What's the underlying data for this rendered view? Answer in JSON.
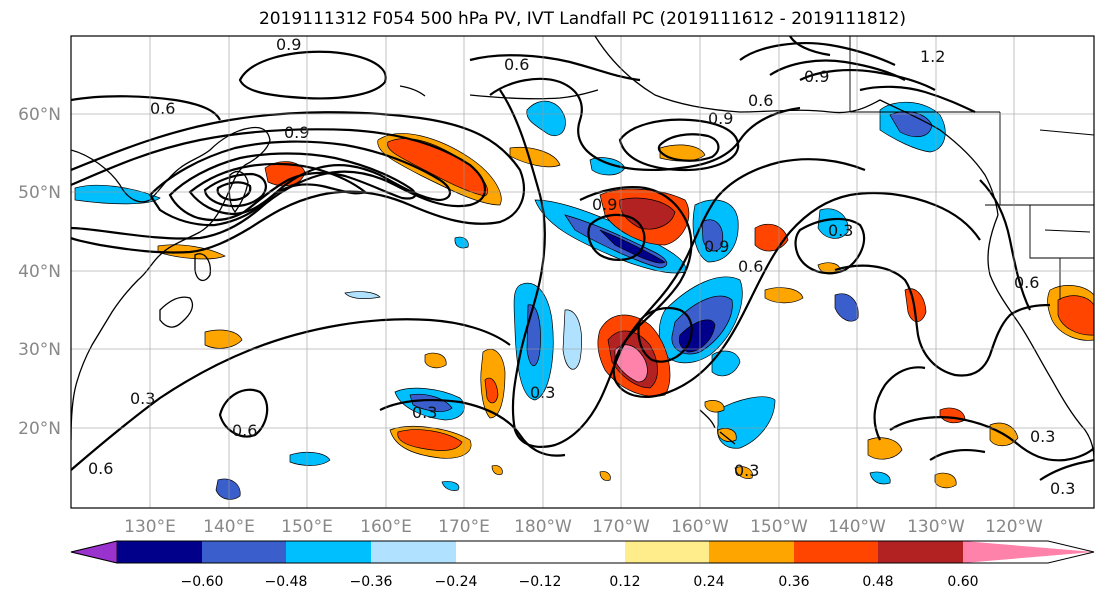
{
  "title": "2019111312 F054 500 hPa PV, IVT Landfall PC (2019111612 - 2019111812)",
  "lat_labels": [
    "60°N",
    "50°N",
    "40°N",
    "30°N",
    "20°N"
  ],
  "lon_labels": [
    "130°E",
    "140°E",
    "150°E",
    "160°E",
    "170°E",
    "180°W",
    "170°W",
    "160°W",
    "150°W",
    "140°W",
    "130°W",
    "120°W"
  ],
  "colorbar": {
    "ticks": [
      "−0.60",
      "−0.48",
      "−0.36",
      "−0.24",
      "−0.12",
      "0.12",
      "0.24",
      "0.36",
      "0.48",
      "0.60"
    ],
    "colors": [
      "#9a32cd",
      "#00008b",
      "#3a5fcd",
      "#00bfff",
      "#b0e2ff",
      "#ffffff",
      "#ffec8b",
      "#ffa500",
      "#ff4500",
      "#b22222",
      "#ff82ab"
    ]
  },
  "contour_labels": [
    "0.9",
    "0.6",
    "0.9",
    "0.6",
    "0.9",
    "1.2",
    "0.6",
    "0.9",
    "0.9",
    "0.6",
    "0.3",
    "0.6",
    "0.3",
    "0.3",
    "0.6",
    "0.3",
    "0.6",
    "0.3",
    "0.3",
    "0.3",
    "0.9"
  ]
}
